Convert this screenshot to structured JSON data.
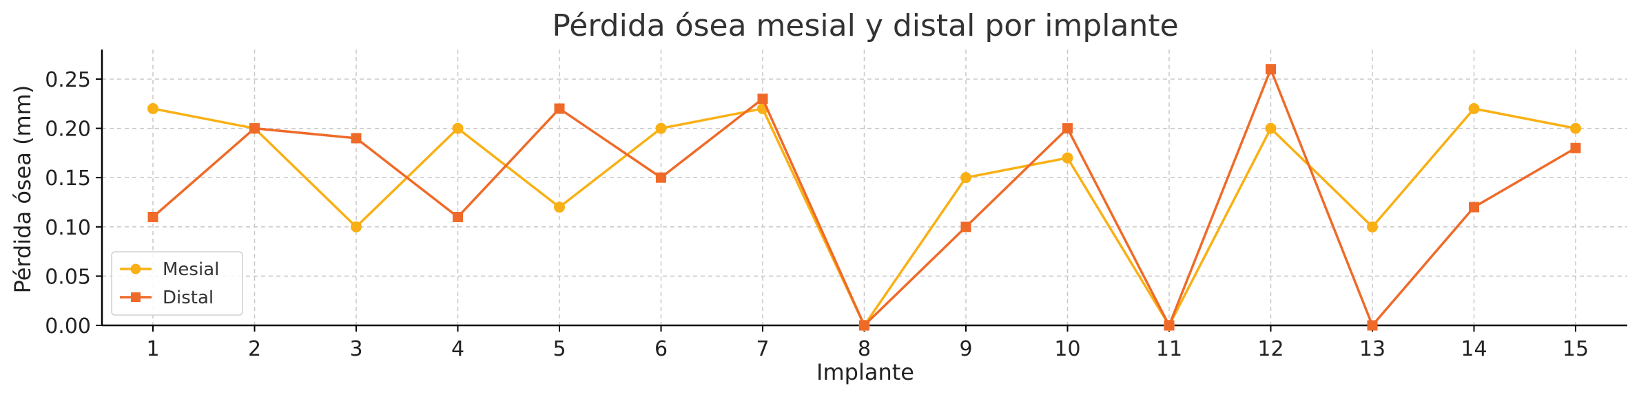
{
  "chart_data": {
    "type": "line",
    "title": "Pérdida ósea mesial y distal por implante",
    "xlabel": "Implante",
    "ylabel": "Pérdida ósea (mm)",
    "x": [
      1,
      2,
      3,
      4,
      5,
      6,
      7,
      8,
      9,
      10,
      11,
      12,
      13,
      14,
      15
    ],
    "xticks": [
      "1",
      "2",
      "3",
      "4",
      "5",
      "6",
      "7",
      "8",
      "9",
      "10",
      "11",
      "12",
      "13",
      "14",
      "15"
    ],
    "yticks": [
      "0.00",
      "0.05",
      "0.10",
      "0.15",
      "0.20",
      "0.25"
    ],
    "ylim": [
      0,
      0.28
    ],
    "grid": true,
    "legend_position": "lower-left",
    "series": [
      {
        "name": "Mesial",
        "marker": "circle",
        "color": "#f9b014",
        "values": [
          0.22,
          0.2,
          0.1,
          0.2,
          0.12,
          0.2,
          0.22,
          0.0,
          0.15,
          0.17,
          0.0,
          0.2,
          0.1,
          0.22,
          0.2
        ]
      },
      {
        "name": "Distal",
        "marker": "square",
        "color": "#ef6a28",
        "values": [
          0.11,
          0.2,
          0.19,
          0.11,
          0.22,
          0.15,
          0.23,
          0.0,
          0.1,
          0.2,
          0.0,
          0.26,
          0.0,
          0.12,
          0.18
        ]
      }
    ]
  }
}
